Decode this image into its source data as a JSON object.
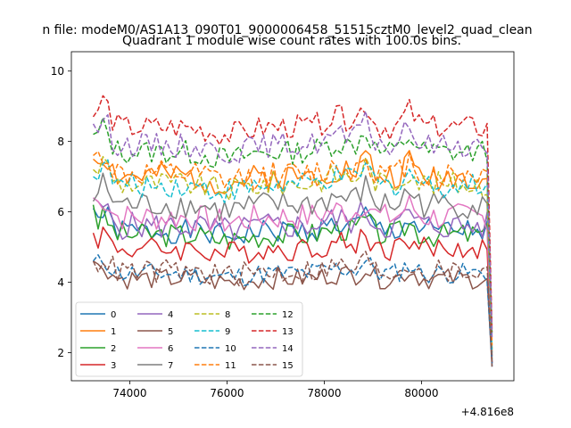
{
  "chart_data": {
    "type": "line",
    "suptitle": "n file: modeM0/AS1A13_090T01_9000006458_51515cztM0_level2_quad_clean",
    "title": "Quadrant 1 module wise count rates with 100.0s bins.",
    "xlabel": "",
    "ylabel": "",
    "x_offset_label": "+4.816e8",
    "xlim": [
      72800,
      81900
    ],
    "ylim": [
      1.2,
      10.55
    ],
    "x_start": 73250,
    "x_end": 81450,
    "n_points": 83,
    "x_ticks": [
      74000,
      76000,
      78000,
      80000
    ],
    "x_tick_labels": [
      "74000",
      "76000",
      "78000",
      "80000"
    ],
    "y_ticks": [
      2,
      4,
      6,
      8,
      10
    ],
    "y_tick_labels": [
      "2",
      "4",
      "6",
      "8",
      "10"
    ],
    "legend_location": "lower left",
    "series": [
      {
        "name": "0",
        "color": "#1f77b4",
        "dash": "solid",
        "mean": 5.45,
        "amp": 0.35,
        "seed": 1,
        "start": 6.1,
        "end": 1.6
      },
      {
        "name": "1",
        "color": "#ff7f0e",
        "dash": "solid",
        "mean": 7.0,
        "amp": 0.4,
        "seed": 2,
        "start": 7.5,
        "end": 2.0
      },
      {
        "name": "2",
        "color": "#2ca02c",
        "dash": "solid",
        "mean": 5.35,
        "amp": 0.35,
        "seed": 3,
        "start": 6.2,
        "end": 1.8
      },
      {
        "name": "3",
        "color": "#d62728",
        "dash": "solid",
        "mean": 4.95,
        "amp": 0.35,
        "seed": 4,
        "start": 5.4,
        "end": 1.7
      },
      {
        "name": "4",
        "color": "#9467bd",
        "dash": "solid",
        "mean": 5.6,
        "amp": 0.4,
        "seed": 5,
        "start": 6.4,
        "end": 1.7
      },
      {
        "name": "5",
        "color": "#8c564b",
        "dash": "solid",
        "mean": 4.1,
        "amp": 0.3,
        "seed": 6,
        "start": 4.6,
        "end": 1.6
      },
      {
        "name": "6",
        "color": "#e377c2",
        "dash": "solid",
        "mean": 5.85,
        "amp": 0.4,
        "seed": 7,
        "start": 6.4,
        "end": 1.9
      },
      {
        "name": "7",
        "color": "#7f7f7f",
        "dash": "solid",
        "mean": 6.2,
        "amp": 0.4,
        "seed": 8,
        "start": 6.3,
        "end": 1.9
      },
      {
        "name": "8",
        "color": "#bcbd22",
        "dash": "dashed",
        "mean": 6.8,
        "amp": 0.35,
        "seed": 9,
        "start": 7.2,
        "end": 2.1
      },
      {
        "name": "9",
        "color": "#17becf",
        "dash": "dashed",
        "mean": 6.75,
        "amp": 0.35,
        "seed": 10,
        "start": 7.0,
        "end": 2.0
      },
      {
        "name": "10",
        "color": "#1f77b4",
        "dash": "dashed",
        "mean": 4.25,
        "amp": 0.3,
        "seed": 11,
        "start": 4.6,
        "end": 1.7
      },
      {
        "name": "11",
        "color": "#ff7f0e",
        "dash": "dashed",
        "mean": 7.05,
        "amp": 0.4,
        "seed": 12,
        "start": 7.6,
        "end": 2.2
      },
      {
        "name": "12",
        "color": "#2ca02c",
        "dash": "dashed",
        "mean": 7.7,
        "amp": 0.35,
        "seed": 13,
        "start": 8.2,
        "end": 2.5
      },
      {
        "name": "13",
        "color": "#d62728",
        "dash": "dashed",
        "mean": 8.4,
        "amp": 0.35,
        "seed": 14,
        "start": 8.7,
        "end": 2.6
      },
      {
        "name": "14",
        "color": "#9467bd",
        "dash": "dashed",
        "mean": 7.9,
        "amp": 0.35,
        "seed": 15,
        "start": 8.5,
        "end": 2.4
      },
      {
        "name": "15",
        "color": "#8c564b",
        "dash": "dashed",
        "mean": 4.3,
        "amp": 0.35,
        "seed": 16,
        "start": 4.6,
        "end": 1.7
      }
    ]
  }
}
